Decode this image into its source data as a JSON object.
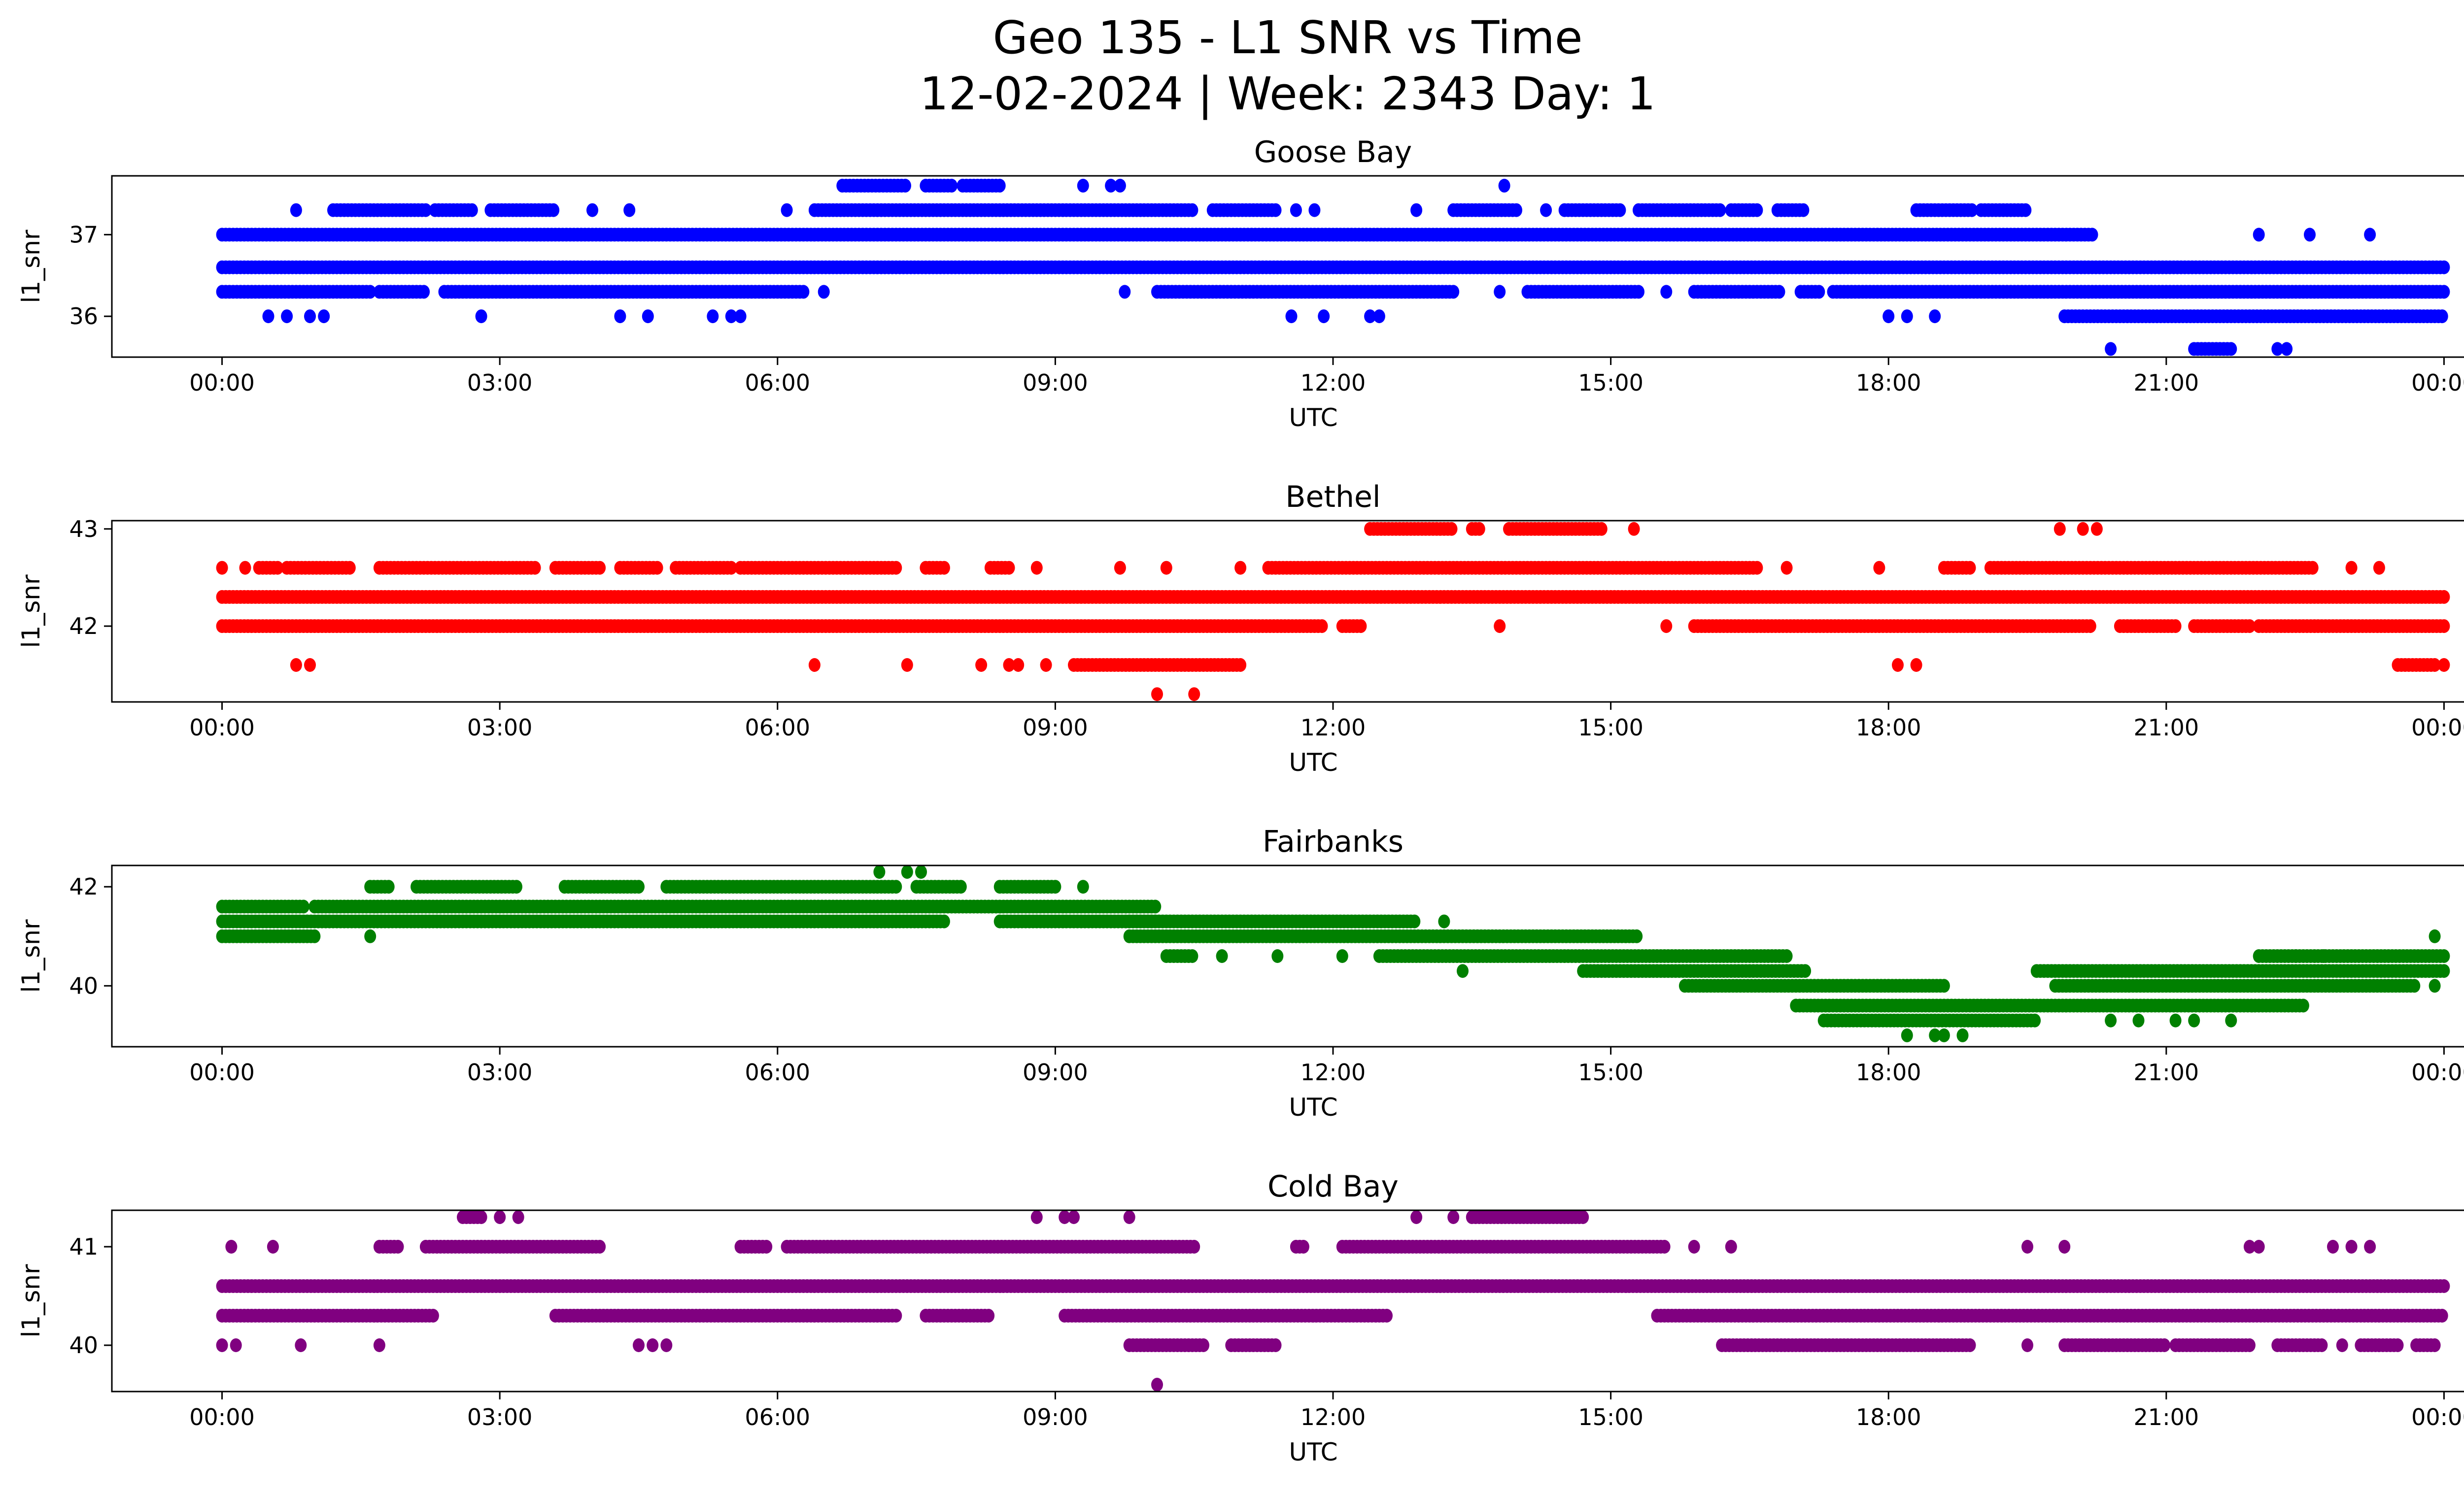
{
  "figure": {
    "title_line1": "Geo 135 - L1 SNR vs Time",
    "title_line2": "12-02-2024 | Week: 2343 Day: 1"
  },
  "chart_data": [
    {
      "type": "scatter",
      "title": "Goose Bay",
      "xlabel": "UTC",
      "ylabel": "l1_snr",
      "color": "#0000ff",
      "xlim": [
        -1.19,
        25.19
      ],
      "ylim": [
        35.5,
        37.72
      ],
      "yticks": [
        36,
        37
      ],
      "xticks": [
        0,
        3,
        6,
        9,
        12,
        15,
        18,
        21,
        24
      ],
      "xtick_labels": [
        "00:00",
        "03:00",
        "06:00",
        "09:00",
        "12:00",
        "15:00",
        "18:00",
        "21:00",
        "00:00"
      ],
      "levels": [
        {
          "y": 37.6,
          "ranges": [
            [
              6.7,
              7.4
            ],
            [
              7.6,
              7.9
            ],
            [
              8.0,
              8.4
            ]
          ],
          "points": [
            9.3,
            9.6,
            9.7,
            13.85
          ]
        },
        {
          "y": 37.3,
          "ranges": [
            [
              1.2,
              2.2
            ],
            [
              2.3,
              2.7
            ],
            [
              2.9,
              3.6
            ],
            [
              6.4,
              10.5
            ],
            [
              10.7,
              11.4
            ],
            [
              13.3,
              14.0
            ],
            [
              14.5,
              15.1
            ],
            [
              15.3,
              16.2
            ],
            [
              16.3,
              16.6
            ],
            [
              16.8,
              17.1
            ],
            [
              18.3,
              18.9
            ],
            [
              19.0,
              19.5
            ]
          ],
          "points": [
            0.8,
            4.0,
            4.4,
            6.1,
            11.6,
            11.8,
            12.9,
            14.3
          ]
        },
        {
          "y": 37.0,
          "ranges": [
            [
              0,
              20.2
            ]
          ],
          "points": [
            22.0,
            22.55,
            23.2
          ]
        },
        {
          "y": 36.6,
          "ranges": [
            [
              0,
              24
            ]
          ],
          "points": []
        },
        {
          "y": 36.3,
          "ranges": [
            [
              0,
              1.6
            ],
            [
              1.7,
              2.2
            ],
            [
              2.4,
              6.3
            ],
            [
              10.1,
              13.3
            ],
            [
              14.1,
              15.3
            ],
            [
              15.9,
              16.85
            ],
            [
              17.05,
              17.25
            ],
            [
              17.4,
              24
            ]
          ],
          "points": [
            6.5,
            9.75,
            13.8,
            15.6
          ]
        },
        {
          "y": 36.0,
          "ranges": [
            [
              19.9,
              24
            ]
          ],
          "points": [
            0.5,
            0.7,
            0.95,
            1.1,
            2.8,
            4.3,
            4.6,
            5.3,
            5.5,
            5.6,
            11.55,
            11.9,
            12.4,
            12.5,
            18.0,
            18.2,
            18.5
          ]
        },
        {
          "y": 35.6,
          "ranges": [
            [
              21.3,
              21.7
            ]
          ],
          "points": [
            20.4,
            22.2,
            22.3
          ]
        }
      ]
    },
    {
      "type": "scatter",
      "title": "Bethel",
      "xlabel": "UTC",
      "ylabel": "l1_snr",
      "color": "#ff0000",
      "xlim": [
        -1.19,
        25.19
      ],
      "ylim": [
        41.22,
        43.085
      ],
      "yticks": [
        42,
        43
      ],
      "xticks": [
        0,
        3,
        6,
        9,
        12,
        15,
        18,
        21,
        24
      ],
      "xtick_labels": [
        "00:00",
        "03:00",
        "06:00",
        "09:00",
        "12:00",
        "15:00",
        "18:00",
        "21:00",
        "00:00"
      ],
      "levels": [
        {
          "y": 43.0,
          "ranges": [
            [
              12.4,
              13.3
            ],
            [
              13.5,
              13.6
            ],
            [
              13.9,
              14.9
            ]
          ],
          "points": [
            15.25,
            19.85,
            20.1,
            20.25
          ]
        },
        {
          "y": 42.6,
          "ranges": [
            [
              0.4,
              0.6
            ],
            [
              0.7,
              1.4
            ],
            [
              1.7,
              3.4
            ],
            [
              3.6,
              4.1
            ],
            [
              4.3,
              4.7
            ],
            [
              4.9,
              5.5
            ],
            [
              5.6,
              7.3
            ],
            [
              7.6,
              7.8
            ],
            [
              8.3,
              8.5
            ],
            [
              11.3,
              16.6
            ],
            [
              18.6,
              18.9
            ],
            [
              19.1,
              22.6
            ]
          ],
          "points": [
            0,
            0.25,
            8.8,
            9.7,
            10.2,
            11.0,
            16.9,
            17.9,
            23.0,
            23.3
          ]
        },
        {
          "y": 42.3,
          "ranges": [
            [
              0,
              24
            ]
          ],
          "points": []
        },
        {
          "y": 42.0,
          "ranges": [
            [
              0,
              11.9
            ],
            [
              12.1,
              12.3
            ],
            [
              15.9,
              20.2
            ],
            [
              20.5,
              21.1
            ],
            [
              21.3,
              21.9
            ],
            [
              22.0,
              24
            ]
          ],
          "points": [
            13.8,
            15.6
          ]
        },
        {
          "y": 41.6,
          "ranges": [
            [
              9.2,
              11.0
            ],
            [
              23.5,
              23.9
            ]
          ],
          "points": [
            0.8,
            0.95,
            6.4,
            7.4,
            8.2,
            8.5,
            8.6,
            8.9,
            18.1,
            18.3,
            24
          ]
        },
        {
          "y": 41.3,
          "ranges": [],
          "points": [
            10.1,
            10.5
          ]
        }
      ]
    },
    {
      "type": "scatter",
      "title": "Fairbanks",
      "xlabel": "UTC",
      "ylabel": "l1_snr",
      "color": "#008000",
      "xlim": [
        -1.19,
        25.19
      ],
      "ylim": [
        38.77,
        42.43
      ],
      "yticks": [
        40,
        42
      ],
      "xticks": [
        0,
        3,
        6,
        9,
        12,
        15,
        18,
        21,
        24
      ],
      "xtick_labels": [
        "00:00",
        "03:00",
        "06:00",
        "09:00",
        "12:00",
        "15:00",
        "18:00",
        "21:00",
        "00:00"
      ],
      "levels": [
        {
          "y": 42.3,
          "ranges": [],
          "points": [
            7.1,
            7.4,
            7.55
          ]
        },
        {
          "y": 42.0,
          "ranges": [
            [
              1.6,
              1.8
            ],
            [
              2.1,
              3.2
            ],
            [
              3.7,
              4.5
            ],
            [
              4.8,
              7.3
            ],
            [
              7.5,
              8.0
            ],
            [
              8.4,
              9.0
            ]
          ],
          "points": [
            9.3
          ]
        },
        {
          "y": 41.6,
          "ranges": [
            [
              0,
              0.9
            ],
            [
              1.0,
              10.1
            ]
          ],
          "points": []
        },
        {
          "y": 41.3,
          "ranges": [
            [
              0,
              7.8
            ],
            [
              8.4,
              10.1
            ],
            [
              9.8,
              12.9
            ]
          ],
          "points": [
            13.2
          ]
        },
        {
          "y": 41.0,
          "ranges": [
            [
              0,
              1.0
            ],
            [
              9.8,
              15.3
            ]
          ],
          "points": [
            1.6,
            23.9
          ]
        },
        {
          "y": 40.6,
          "ranges": [
            [
              10.2,
              10.5
            ],
            [
              12.5,
              16.9
            ],
            [
              22.0,
              24
            ]
          ],
          "points": [
            10.8,
            11.4,
            12.1,
            22.4,
            22.7
          ]
        },
        {
          "y": 40.3,
          "ranges": [
            [
              14.7,
              17.1
            ],
            [
              19.6,
              24
            ]
          ],
          "points": [
            13.4
          ]
        },
        {
          "y": 40.0,
          "ranges": [
            [
              15.8,
              18.6
            ],
            [
              19.8,
              23.7
            ]
          ],
          "points": [
            23.9
          ]
        },
        {
          "y": 39.6,
          "ranges": [
            [
              17.0,
              22.5
            ]
          ],
          "points": []
        },
        {
          "y": 39.3,
          "ranges": [
            [
              17.3,
              19.6
            ]
          ],
          "points": [
            20.4,
            20.7,
            21.1,
            21.3,
            21.7
          ]
        },
        {
          "y": 39.0,
          "ranges": [],
          "points": [
            18.2,
            18.5,
            18.6,
            18.8
          ]
        }
      ]
    },
    {
      "type": "scatter",
      "title": "Cold Bay",
      "xlabel": "UTC",
      "ylabel": "l1_snr",
      "color": "#800080",
      "xlim": [
        -1.19,
        25.19
      ],
      "ylim": [
        39.53,
        41.37
      ],
      "yticks": [
        40,
        41
      ],
      "xticks": [
        0,
        3,
        6,
        9,
        12,
        15,
        18,
        21,
        24
      ],
      "xtick_labels": [
        "00:00",
        "03:00",
        "06:00",
        "09:00",
        "12:00",
        "15:00",
        "18:00",
        "21:00",
        "00:00"
      ],
      "levels": [
        {
          "y": 41.3,
          "ranges": [
            [
              2.6,
              2.8
            ],
            [
              13.5,
              14.7
            ]
          ],
          "points": [
            3.0,
            3.2,
            8.8,
            9.1,
            9.2,
            9.8,
            12.9,
            13.3
          ]
        },
        {
          "y": 41.0,
          "ranges": [
            [
              1.7,
              1.9
            ],
            [
              2.2,
              4.1
            ],
            [
              5.6,
              5.9
            ],
            [
              6.1,
              10.5
            ],
            [
              11.6,
              11.7
            ],
            [
              12.1,
              15.6
            ]
          ],
          "points": [
            0.1,
            0.55,
            15.9,
            16.3,
            19.5,
            19.9,
            21.9,
            22.0,
            22.8,
            23.0,
            23.2
          ]
        },
        {
          "y": 40.6,
          "ranges": [
            [
              0,
              24
            ]
          ],
          "points": []
        },
        {
          "y": 40.3,
          "ranges": [
            [
              0,
              2.3
            ],
            [
              3.6,
              7.3
            ],
            [
              7.6,
              8.3
            ],
            [
              9.1,
              12.6
            ],
            [
              15.5,
              24
            ]
          ],
          "points": []
        },
        {
          "y": 40.0,
          "ranges": [
            [
              9.8,
              10.6
            ],
            [
              10.9,
              11.4
            ],
            [
              16.2,
              18.9
            ],
            [
              19.9,
              21.0
            ],
            [
              21.1,
              21.9
            ],
            [
              22.2,
              22.7
            ],
            [
              23.1,
              23.5
            ],
            [
              23.7,
              23.9
            ]
          ],
          "points": [
            0,
            0.15,
            0.85,
            1.7,
            4.5,
            4.65,
            4.8,
            19.5,
            22.9
          ]
        },
        {
          "y": 39.6,
          "ranges": [],
          "points": [
            10.1
          ]
        }
      ]
    }
  ]
}
